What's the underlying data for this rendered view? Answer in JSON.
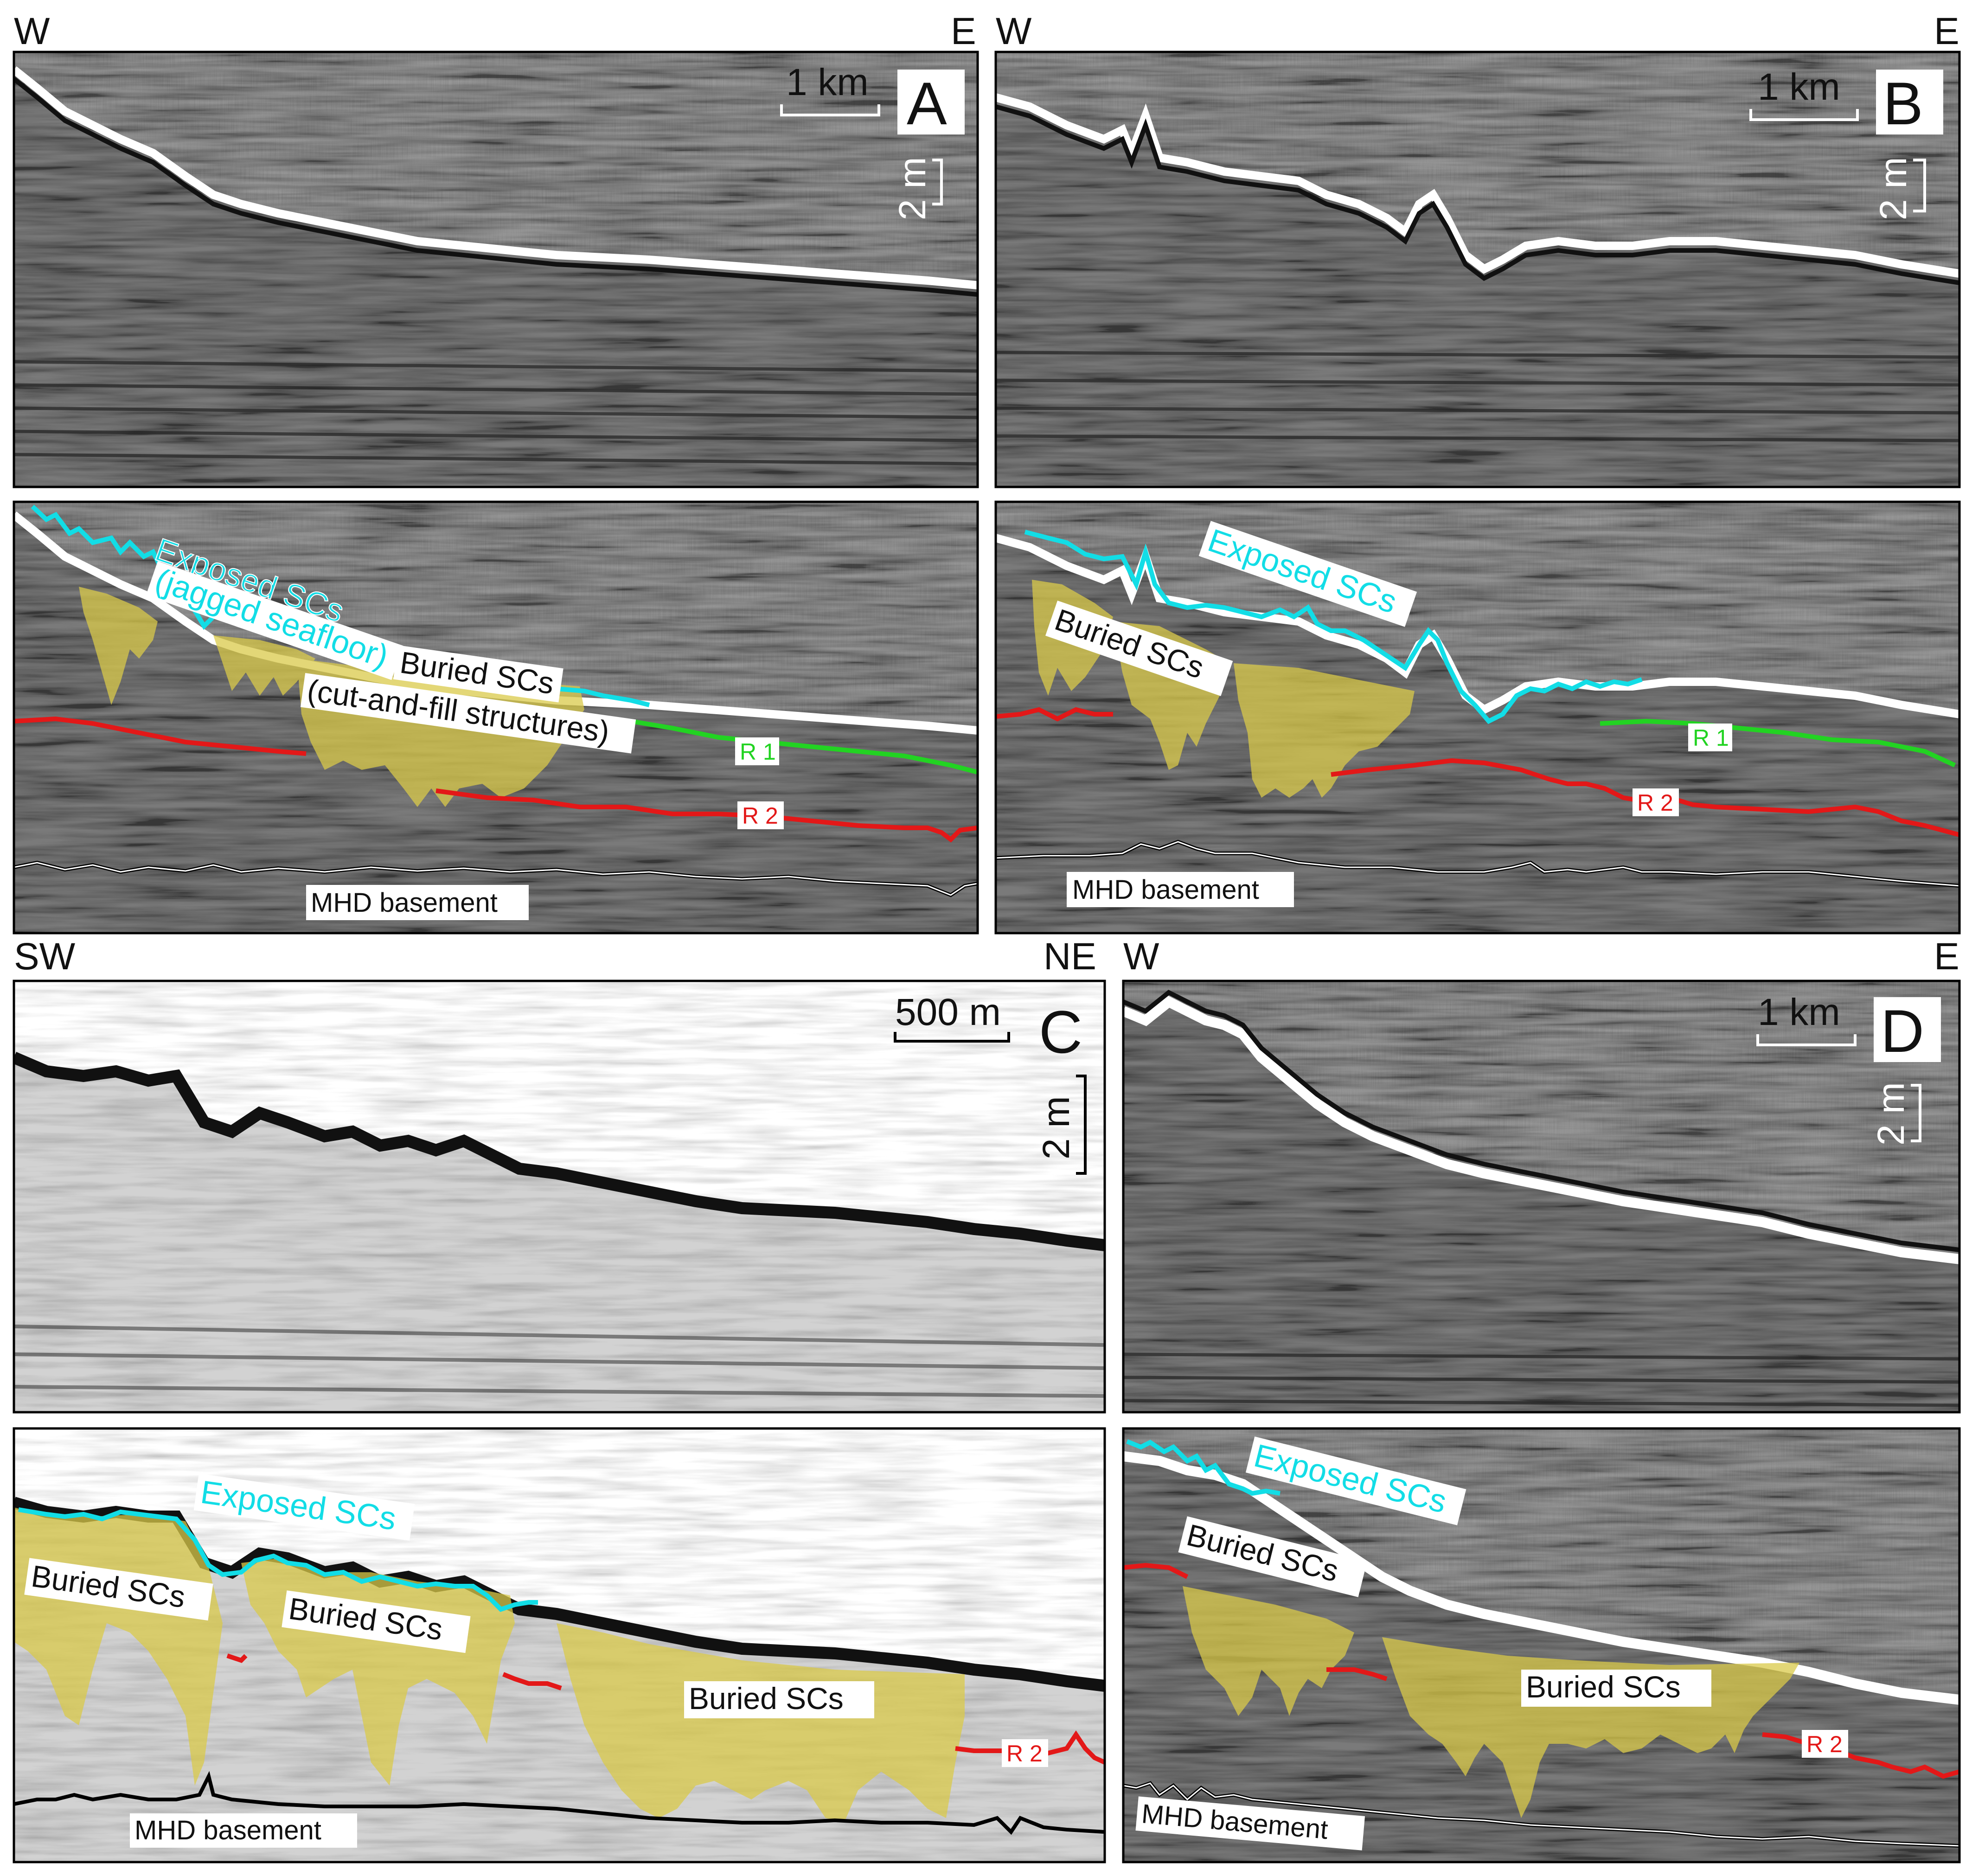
{
  "panels": {
    "a": {
      "letter": "A",
      "dir_left": "W",
      "dir_right": "E",
      "scale_horizontal": "1 km",
      "scale_vertical": "2 m",
      "labels": {
        "exposed_line1": "Exposed SCs",
        "exposed_line2": "(jagged seafloor)",
        "buried_line1": "Buried SCs",
        "buried_line2": "(cut-and-fill structures)",
        "r1": "R 1",
        "r2": "R 2",
        "basement": "MHD basement"
      }
    },
    "b": {
      "letter": "B",
      "dir_left": "W",
      "dir_right": "E",
      "scale_horizontal": "1 km",
      "scale_vertical": "2 m",
      "labels": {
        "exposed": "Exposed SCs",
        "buried": "Buried SCs",
        "r1": "R 1",
        "r2": "R 2",
        "basement": "MHD basement"
      }
    },
    "c": {
      "letter": "C",
      "dir_left": "SW",
      "dir_right": "NE",
      "scale_horizontal": "500 m",
      "scale_vertical": "2 m",
      "labels": {
        "exposed": "Exposed SCs",
        "buried_1": "Buried SCs",
        "buried_2": "Buried SCs",
        "buried_3": "Buried SCs",
        "r2": "R 2",
        "basement": "MHD basement"
      }
    },
    "d": {
      "letter": "D",
      "dir_left": "W",
      "dir_right": "E",
      "scale_horizontal": "1 km",
      "scale_vertical": "2 m",
      "labels": {
        "exposed": "Exposed SCs",
        "buried_1": "Buried SCs",
        "buried_2": "Buried SCs",
        "r2": "R 2",
        "basement": "MHD basement"
      }
    }
  },
  "colors": {
    "exposed_horizon": "#12dde6",
    "reflector_r1": "#22d322",
    "reflector_r2": "#e31818",
    "basement": "#000000",
    "buried_fill": "#d9c94a"
  }
}
